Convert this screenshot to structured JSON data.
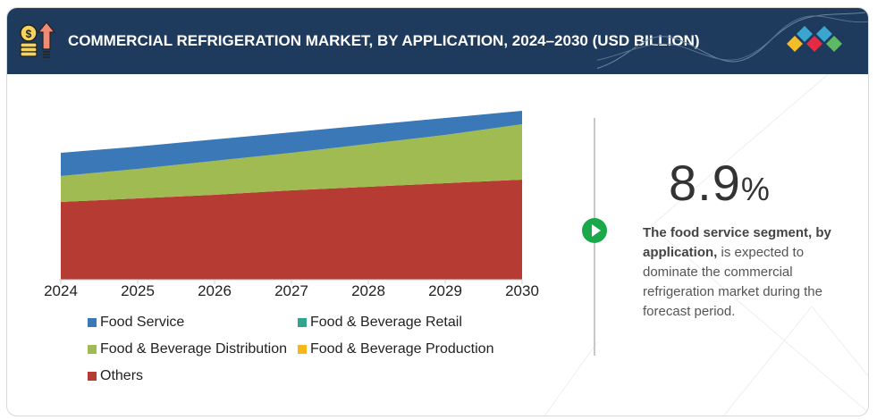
{
  "header": {
    "title": "COMMERCIAL REFRIGERATION MARKET, BY APPLICATION, 2024–2030 (USD BILLION)",
    "icon": "coins-growth-icon",
    "logo": "diamond-logo-icon"
  },
  "colors": {
    "header_bg": "#1e3a5c",
    "food_service": "#3a78b8",
    "fb_retail": "#2fa58c",
    "fb_distribution": "#a0bb52",
    "fb_production": "#f6b818",
    "others": "#b63c33",
    "accent_green": "#1aa84a"
  },
  "chart_data": {
    "type": "area",
    "stacked": true,
    "title": "COMMERCIAL REFRIGERATION MARKET, BY APPLICATION, 2024–2030 (USD BILLION)",
    "xlabel": "",
    "ylabel": "",
    "x": [
      "2024",
      "2025",
      "2026",
      "2027",
      "2028",
      "2029",
      "2030"
    ],
    "ylim": [
      0,
      20
    ],
    "grid": false,
    "legend_position": "bottom",
    "series": [
      {
        "name": "Others",
        "color": "#b63c33",
        "values": [
          8.7,
          9.1,
          9.5,
          10.0,
          10.4,
          10.8,
          11.2
        ]
      },
      {
        "name": "Food & Beverage Production",
        "color": "#f6b818",
        "values": [
          0,
          0,
          0,
          0,
          0,
          0,
          0
        ]
      },
      {
        "name": "Food & Beverage Distribution",
        "color": "#a0bb52",
        "values": [
          2.9,
          3.3,
          3.8,
          4.2,
          4.8,
          5.4,
          6.2
        ]
      },
      {
        "name": "Food & Beverage Retail",
        "color": "#2fa58c",
        "values": [
          0,
          0,
          0,
          0,
          0,
          0,
          0
        ]
      },
      {
        "name": "Food Service",
        "color": "#3a78b8",
        "values": [
          2.6,
          2.5,
          2.4,
          2.3,
          2.1,
          1.9,
          1.5
        ]
      }
    ]
  },
  "legend": [
    {
      "label": "Food Service",
      "color": "#3a78b8"
    },
    {
      "label": "Food & Beverage Retail",
      "color": "#2fa58c"
    },
    {
      "label": "Food & Beverage Distribution",
      "color": "#a0bb52"
    },
    {
      "label": "Food & Beverage Production",
      "color": "#f6b818"
    },
    {
      "label": "Others",
      "color": "#b63c33"
    }
  ],
  "highlight": {
    "value": "8.9",
    "unit": "%",
    "desc_bold": "The food service segment, by application,",
    "desc_rest": " is expected to dominate the commercial refrigeration market during the forecast period."
  }
}
